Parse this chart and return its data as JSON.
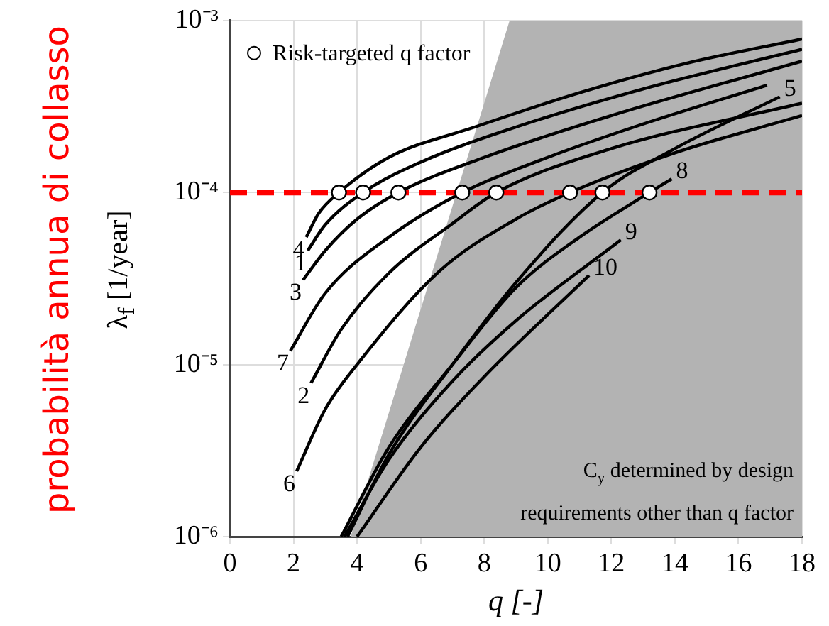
{
  "chart_data": {
    "type": "line",
    "xlabel": "q [-]",
    "ylabel": "λ$_{f}$ [1/year]",
    "xlim": [
      0,
      18
    ],
    "xticks": [
      0,
      2,
      4,
      6,
      8,
      10,
      12,
      14,
      16,
      18
    ],
    "ylim": [
      1e-06,
      0.001
    ],
    "yticks": [
      {
        "value": 1e-06,
        "label": "10⁻⁶"
      },
      {
        "value": 1e-05,
        "label": "10⁻⁵"
      },
      {
        "value": 0.0001,
        "label": "10⁻⁴"
      },
      {
        "value": 0.001,
        "label": "10⁻³"
      }
    ],
    "log": "y",
    "grid": true,
    "legend": "top left",
    "series": [
      {
        "type": "area",
        "color": "#b3b3b3",
        "x": [
          3.8,
          8.8,
          18,
          18
        ],
        "values": [
          1e-06,
          0.001,
          0.001,
          1e-06
        ]
      },
      {
        "name": "4",
        "color": "#000000",
        "x": [
          2.4,
          2.8,
          3.43,
          5,
          7.7,
          11,
          14.3,
          18
        ],
        "values": [
          5.5e-05,
          7.6e-05,
          0.0001,
          0.00016,
          0.00024,
          0.00038,
          0.00056,
          0.00078
        ]
      },
      {
        "name": "1",
        "color": "#000000",
        "x": [
          2.45,
          3,
          4.19,
          6,
          9,
          13,
          18
        ],
        "values": [
          4.6e-05,
          6.5e-05,
          0.0001,
          0.00015,
          0.00024,
          0.0004,
          0.00068
        ]
      },
      {
        "name": "3",
        "color": "#000000",
        "x": [
          2.3,
          3,
          4,
          5.3,
          8,
          12,
          18
        ],
        "values": [
          3.1e-05,
          4.6e-05,
          7e-05,
          0.0001,
          0.00016,
          0.00028,
          0.00058
        ]
      },
      {
        "name": "7",
        "color": "#000000",
        "x": [
          1.9,
          3,
          5,
          7.31,
          10,
          13,
          16.9
        ],
        "values": [
          1.2e-05,
          2.6e-05,
          5.5e-05,
          0.0001,
          0.00016,
          0.00025,
          0.00042
        ]
      },
      {
        "name": "2",
        "color": "#000000",
        "x": [
          2.55,
          3.5,
          5,
          7,
          8.38,
          12,
          18
        ],
        "values": [
          7.8e-06,
          1.6e-05,
          3.4e-05,
          6.6e-05,
          0.0001,
          0.00018,
          0.00033
        ]
      },
      {
        "name": "6",
        "color": "#000000",
        "x": [
          2.1,
          3,
          4,
          6.6,
          9,
          10.7,
          14,
          18
        ],
        "values": [
          2.4e-06,
          5.5e-06,
          1e-05,
          3.5e-05,
          7e-05,
          0.0001,
          0.00017,
          0.00028
        ]
      },
      {
        "name": "5",
        "color": "#000000",
        "x": [
          3.7,
          5,
          7,
          9,
          11.72,
          14,
          17.3
        ],
        "values": [
          1e-06,
          3e-06,
          1e-05,
          3e-05,
          0.0001,
          0.00018,
          0.00036
        ]
      },
      {
        "name": "8",
        "color": "#000000",
        "x": [
          3.5,
          5,
          7,
          9,
          11,
          13.2,
          13.9
        ],
        "values": [
          1e-06,
          3.3e-06,
          1e-05,
          2.8e-05,
          5.5e-05,
          0.0001,
          0.00012
        ]
      },
      {
        "name": "9",
        "color": "#000000",
        "x": [
          3.6,
          5,
          7,
          9,
          12.3
        ],
        "values": [
          1e-06,
          2.8e-06,
          8e-06,
          1.8e-05,
          5.3e-05
        ]
      },
      {
        "name": "10",
        "color": "#000000",
        "x": [
          4,
          6,
          8,
          11.3
        ],
        "values": [
          1e-06,
          3.3e-06,
          8.5e-06,
          3.3e-05
        ]
      },
      {
        "name": "Risk-targeted q factor",
        "type": "scatter",
        "marker": "circle",
        "color": "#ffffff",
        "x": [
          3.43,
          4.19,
          5.3,
          7.31,
          8.38,
          10.7,
          11.72,
          13.2
        ],
        "values": [
          0.0001,
          0.0001,
          0.0001,
          0.0001,
          0.0001,
          0.0001,
          0.0001,
          0.0001
        ]
      }
    ],
    "ref_lines": [
      {
        "axis": "y",
        "value": 0.0001,
        "color": "#ff0000",
        "line_style": "dashed"
      }
    ],
    "annotations": [
      "C$_{y}$ determined by design",
      "requirements other than q factor",
      "probabilità annua di collasso"
    ]
  }
}
